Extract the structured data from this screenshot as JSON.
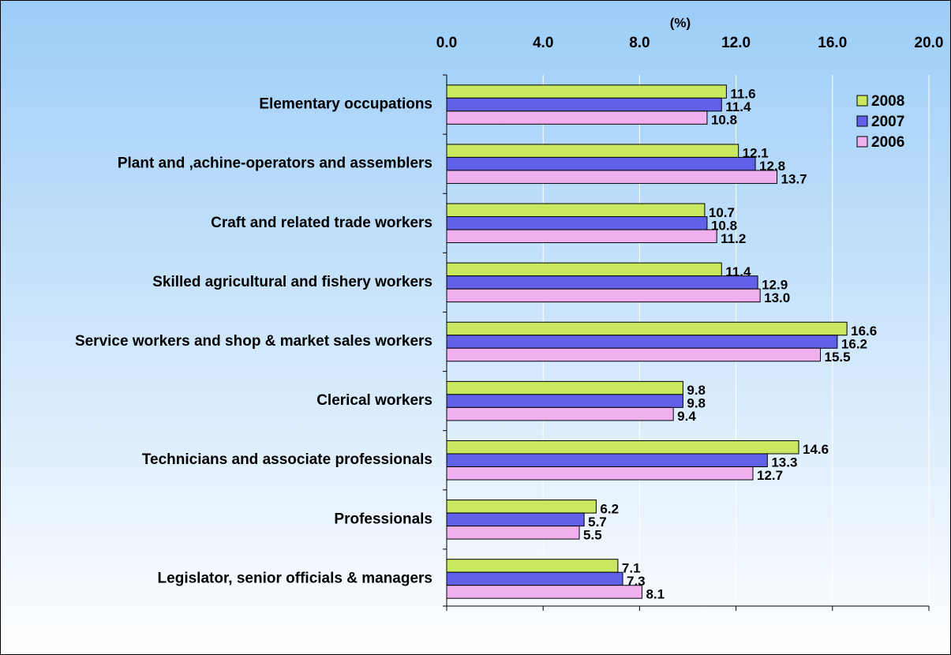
{
  "chart_data": {
    "type": "bar",
    "orientation": "horizontal",
    "xlabel": "(%)",
    "categories": [
      "Elementary occupations",
      "Plant and ,achine-operators and assemblers",
      "Craft and related trade workers",
      "Skilled agricultural and fishery workers",
      "Service workers and shop & market sales workers",
      "Clerical workers",
      "Technicians and  associate professionals",
      "Professionals",
      "Legislator, senior officials & managers"
    ],
    "series": [
      {
        "name": "2008",
        "color": "#c8e860",
        "values": [
          11.6,
          12.1,
          10.7,
          11.4,
          16.6,
          9.8,
          14.6,
          6.2,
          7.1
        ],
        "value_labels": [
          "11.6",
          "12.1",
          "10.7",
          "11.4",
          "16.6",
          "9.8",
          "14.6",
          "6.2",
          "7.1"
        ]
      },
      {
        "name": "2007",
        "color": "#6060e8",
        "values": [
          11.4,
          12.8,
          10.8,
          12.9,
          16.2,
          9.8,
          13.3,
          5.7,
          7.3
        ],
        "value_labels": [
          "11.4",
          "12.8",
          "10.8",
          "12.9",
          "16.2",
          "9.8",
          "13.3",
          "5.7",
          "7.3"
        ]
      },
      {
        "name": "2006",
        "color": "#f0b0f0",
        "values": [
          10.8,
          13.7,
          11.2,
          13.0,
          15.5,
          9.4,
          12.7,
          5.5,
          8.1
        ],
        "value_labels": [
          "10.8",
          "13.7",
          "11.2",
          "13.0",
          "15.5",
          "9.4",
          "12.7",
          "5.5",
          "8.1"
        ]
      }
    ],
    "xlim": [
      0,
      20
    ],
    "xticks": [
      {
        "value": 0,
        "label": "0.0"
      },
      {
        "value": 4,
        "label": "4.0"
      },
      {
        "value": 8,
        "label": "8.0"
      },
      {
        "value": 12,
        "label": "12.0"
      },
      {
        "value": 16,
        "label": "16.0"
      },
      {
        "value": 20,
        "label": "20.0"
      }
    ],
    "grid": true,
    "legend": "top-right"
  }
}
